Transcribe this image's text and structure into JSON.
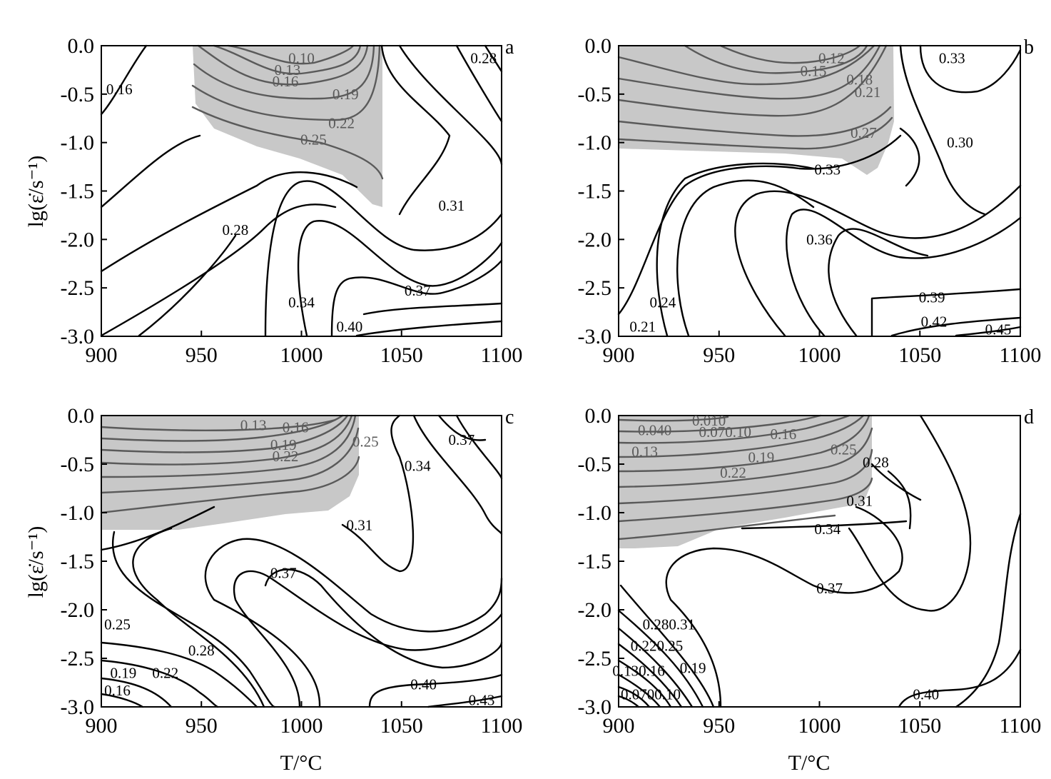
{
  "chart_data": [
    {
      "type": "contour",
      "panel": "a",
      "xlabel": "",
      "ylabel": "lg(ε̇/s⁻¹)",
      "xlim": [
        900,
        1100
      ],
      "ylim": [
        -3.0,
        0.0
      ],
      "x_ticks": [
        "900",
        "950",
        "1000",
        "1050",
        "1100"
      ],
      "y_ticks": [
        "0.0",
        "-0.5",
        "-1.0",
        "-1.5",
        "-2.0",
        "-2.5",
        "-3.0"
      ],
      "shaded_region": [
        [
          945,
          0
        ],
        [
          1038,
          0
        ],
        [
          1038,
          -1.65
        ],
        [
          1020,
          -1.62
        ],
        [
          1000,
          -1.35
        ],
        [
          975,
          -1.2
        ],
        [
          955,
          -1.0
        ],
        [
          946,
          -0.6
        ]
      ],
      "contour_labels": [
        {
          "text": "0.10",
          "x": 1000,
          "y": -0.13,
          "shaded": true
        },
        {
          "text": "0.13",
          "x": 993,
          "y": -0.25,
          "shaded": true
        },
        {
          "text": "0.16",
          "x": 992,
          "y": -0.37,
          "shaded": true
        },
        {
          "text": "0.19",
          "x": 1022,
          "y": -0.5,
          "shaded": true
        },
        {
          "text": "0.22",
          "x": 1020,
          "y": -0.8,
          "shaded": true
        },
        {
          "text": "0.25",
          "x": 1006,
          "y": -0.97,
          "shaded": true
        },
        {
          "text": "0.28",
          "x": 1091,
          "y": -0.13
        },
        {
          "text": "0.16",
          "x": 909,
          "y": -0.45
        },
        {
          "text": "0.31",
          "x": 1075,
          "y": -1.65
        },
        {
          "text": "0.28",
          "x": 967,
          "y": -1.9
        },
        {
          "text": "0.34",
          "x": 1000,
          "y": -2.65
        },
        {
          "text": "0.37",
          "x": 1058,
          "y": -2.53
        },
        {
          "text": "0.40",
          "x": 1024,
          "y": -2.9
        }
      ]
    },
    {
      "type": "contour",
      "panel": "b",
      "xlabel": "",
      "ylabel": "",
      "xlim": [
        900,
        1100
      ],
      "ylim": [
        -3.0,
        0.0
      ],
      "x_ticks": [
        "900",
        "950",
        "1000",
        "1050",
        "1100"
      ],
      "y_ticks": [
        "0.0",
        "-0.5",
        "-1.0",
        "-1.5",
        "-2.0",
        "-2.5",
        "-3.0"
      ],
      "shaded_region": [
        [
          900,
          0
        ],
        [
          1039,
          0
        ],
        [
          1040,
          -0.8
        ],
        [
          1030,
          -1.2
        ],
        [
          1020,
          -1.3
        ],
        [
          1000,
          -1.1
        ],
        [
          940,
          -1.05
        ],
        [
          900,
          -1.03
        ]
      ],
      "contour_labels": [
        {
          "text": "0.12",
          "x": 1006,
          "y": -0.13,
          "shaded": true
        },
        {
          "text": "0.15",
          "x": 997,
          "y": -0.26,
          "shaded": true
        },
        {
          "text": "0.18",
          "x": 1020,
          "y": -0.35,
          "shaded": true
        },
        {
          "text": "0.21",
          "x": 1024,
          "y": -0.48,
          "shaded": true
        },
        {
          "text": "0.27",
          "x": 1022,
          "y": -0.9,
          "shaded": true
        },
        {
          "text": "0.33",
          "x": 1066,
          "y": -0.13
        },
        {
          "text": "0.30",
          "x": 1070,
          "y": -1.0
        },
        {
          "text": "0.33",
          "x": 1004,
          "y": -1.28
        },
        {
          "text": "0.36",
          "x": 1000,
          "y": -2.0
        },
        {
          "text": "0.24",
          "x": 922,
          "y": -2.65
        },
        {
          "text": "0.21",
          "x": 912,
          "y": -2.9
        },
        {
          "text": "0.39",
          "x": 1056,
          "y": -2.6
        },
        {
          "text": "0.42",
          "x": 1057,
          "y": -2.85
        },
        {
          "text": "0.45",
          "x": 1089,
          "y": -2.93
        }
      ]
    },
    {
      "type": "contour",
      "panel": "c",
      "xlabel": "T/°C",
      "ylabel": "lg(ε̇/s⁻¹)",
      "xlim": [
        900,
        1100
      ],
      "ylim": [
        -3.0,
        0.0
      ],
      "x_ticks": [
        "900",
        "950",
        "1000",
        "1050",
        "1100"
      ],
      "y_ticks": [
        "0.0",
        "-0.5",
        "-1.0",
        "-1.5",
        "-2.0",
        "-2.5",
        "-3.0"
      ],
      "shaded_region": [
        [
          900,
          0
        ],
        [
          1028,
          0
        ],
        [
          1028,
          -0.65
        ],
        [
          1018,
          -0.85
        ],
        [
          1000,
          -0.95
        ],
        [
          970,
          -1.02
        ],
        [
          940,
          -1.18
        ],
        [
          900,
          -1.18
        ]
      ],
      "contour_labels": [
        {
          "text": "0.13",
          "x": 976,
          "y": -0.1,
          "shaded": true
        },
        {
          "text": "0.16",
          "x": 997,
          "y": -0.12,
          "shaded": true
        },
        {
          "text": "0.19",
          "x": 991,
          "y": -0.3,
          "shaded": true
        },
        {
          "text": "0.22",
          "x": 992,
          "y": -0.42,
          "shaded": true
        },
        {
          "text": "0.25",
          "x": 1032,
          "y": -0.27,
          "shaded": true
        },
        {
          "text": "0.37",
          "x": 1080,
          "y": -0.25
        },
        {
          "text": "0.34",
          "x": 1058,
          "y": -0.52
        },
        {
          "text": "0.31",
          "x": 1029,
          "y": -1.13
        },
        {
          "text": "0.37",
          "x": 991,
          "y": -1.62
        },
        {
          "text": "0.25",
          "x": 908,
          "y": -2.15
        },
        {
          "text": "0.28",
          "x": 950,
          "y": -2.42
        },
        {
          "text": "0.19",
          "x": 911,
          "y": -2.65
        },
        {
          "text": "0.22",
          "x": 932,
          "y": -2.65
        },
        {
          "text": "0.16",
          "x": 908,
          "y": -2.83
        },
        {
          "text": "0.40",
          "x": 1061,
          "y": -2.77
        },
        {
          "text": "0.43",
          "x": 1090,
          "y": -2.93
        }
      ]
    },
    {
      "type": "contour",
      "panel": "d",
      "xlabel": "T/°C",
      "ylabel": "",
      "xlim": [
        900,
        1100
      ],
      "ylim": [
        -3.0,
        0.0
      ],
      "x_ticks": [
        "900",
        "950",
        "1000",
        "1050",
        "1100"
      ],
      "y_ticks": [
        "0.0",
        "-0.5",
        "-1.0",
        "-1.5",
        "-2.0",
        "-2.5",
        "-3.0"
      ],
      "shaded_region": [
        [
          900,
          0
        ],
        [
          1025,
          0
        ],
        [
          1025,
          -0.7
        ],
        [
          1015,
          -0.95
        ],
        [
          1000,
          -1.0
        ],
        [
          970,
          -1.1
        ],
        [
          950,
          -1.3
        ],
        [
          920,
          -1.38
        ],
        [
          900,
          -1.38
        ]
      ],
      "contour_labels": [
        {
          "text": "0.010",
          "x": 945,
          "y": -0.05,
          "shaded": true
        },
        {
          "text": "0.040",
          "x": 918,
          "y": -0.15,
          "shaded": true
        },
        {
          "text": "0.070.10",
          "x": 953,
          "y": -0.17,
          "shaded": true
        },
        {
          "text": "0.16",
          "x": 982,
          "y": -0.19,
          "shaded": true
        },
        {
          "text": "0.13",
          "x": 913,
          "y": -0.37,
          "shaded": true
        },
        {
          "text": "0.19",
          "x": 971,
          "y": -0.43,
          "shaded": true
        },
        {
          "text": "0.22",
          "x": 957,
          "y": -0.59,
          "shaded": true
        },
        {
          "text": "0.25",
          "x": 1012,
          "y": -0.35,
          "shaded": true
        },
        {
          "text": "0.28",
          "x": 1028,
          "y": -0.48
        },
        {
          "text": "0.31",
          "x": 1020,
          "y": -0.88
        },
        {
          "text": "0.34",
          "x": 1004,
          "y": -1.17
        },
        {
          "text": "0.37",
          "x": 1005,
          "y": -1.78
        },
        {
          "text": "0.280.31",
          "x": 925,
          "y": -2.15
        },
        {
          "text": "0.220.25",
          "x": 919,
          "y": -2.37
        },
        {
          "text": "0.19",
          "x": 937,
          "y": -2.6
        },
        {
          "text": "0.130.16",
          "x": 910,
          "y": -2.63
        },
        {
          "text": "0.0700.10",
          "x": 916,
          "y": -2.87
        },
        {
          "text": "0.40",
          "x": 1053,
          "y": -2.87
        }
      ]
    }
  ]
}
